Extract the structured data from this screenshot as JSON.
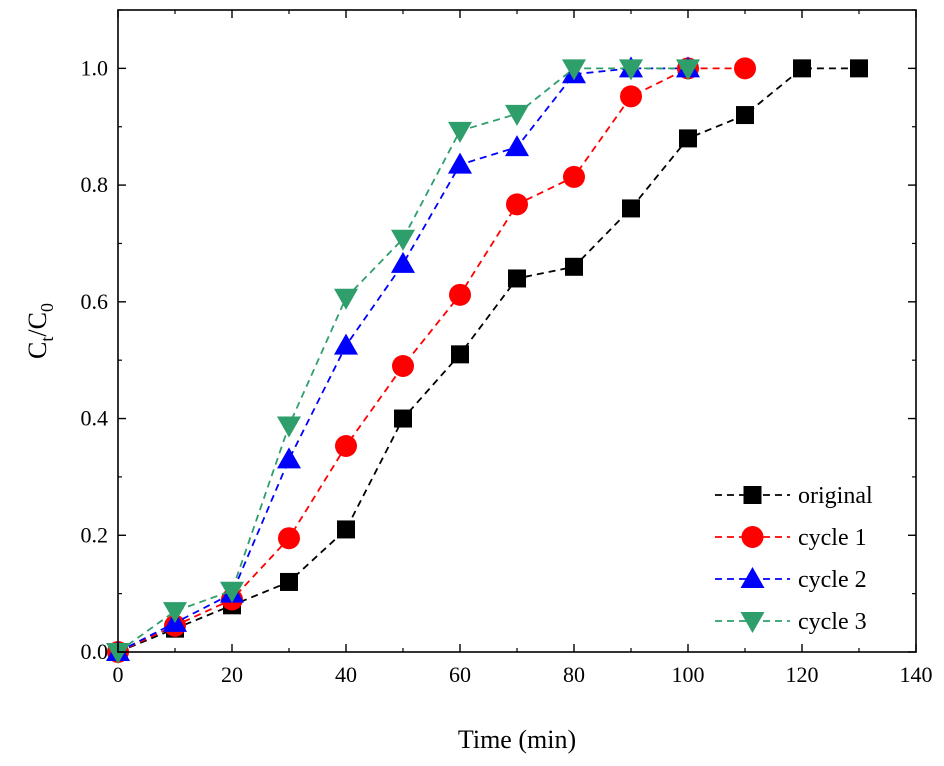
{
  "chart_data": {
    "type": "line",
    "title": "",
    "xlabel": "Time (min)",
    "ylabel": {
      "main": "C",
      "sub1": "t",
      "sep": "/C",
      "sub2": "0"
    },
    "xlim": [
      0,
      140
    ],
    "ylim": [
      0,
      1.1
    ],
    "xticks": [
      0,
      20,
      40,
      60,
      80,
      100,
      120,
      140
    ],
    "xtick_labels": [
      "0",
      "20",
      "40",
      "60",
      "80",
      "100",
      "120",
      "140"
    ],
    "yticks": [
      0,
      0.2,
      0.4,
      0.6,
      0.8,
      1.0
    ],
    "ytick_labels": [
      "0.0",
      "0.2",
      "0.4",
      "0.6",
      "0.8",
      "1.0"
    ],
    "grid": false,
    "legend_position": "bottom-right",
    "series": [
      {
        "name": "original",
        "color": "#000000",
        "marker": "square",
        "x": [
          0,
          10,
          20,
          30,
          40,
          50,
          60,
          70,
          80,
          90,
          100,
          110,
          120,
          130
        ],
        "y": [
          0.0,
          0.04,
          0.08,
          0.12,
          0.21,
          0.4,
          0.51,
          0.64,
          0.66,
          0.76,
          0.88,
          0.92,
          1.0,
          1.0
        ]
      },
      {
        "name": "cycle 1",
        "color": "#ff0000",
        "marker": "circle",
        "x": [
          0,
          10,
          20,
          30,
          40,
          50,
          60,
          70,
          80,
          90,
          100,
          110
        ],
        "y": [
          0.0,
          0.045,
          0.09,
          0.195,
          0.353,
          0.49,
          0.612,
          0.767,
          0.814,
          0.952,
          1.0,
          1.0
        ]
      },
      {
        "name": "cycle 2",
        "color": "#0000ff",
        "marker": "triangle-up",
        "x": [
          0,
          10,
          20,
          30,
          40,
          50,
          60,
          70,
          80,
          90,
          100
        ],
        "y": [
          0.0,
          0.05,
          0.1,
          0.33,
          0.525,
          0.665,
          0.835,
          0.865,
          0.99,
          1.0,
          1.0
        ]
      },
      {
        "name": "cycle 3",
        "color": "#2e9e6b",
        "marker": "triangle-down",
        "x": [
          0,
          10,
          20,
          30,
          40,
          50,
          60,
          70,
          80,
          90,
          100
        ],
        "y": [
          0.0,
          0.07,
          0.105,
          0.388,
          0.607,
          0.708,
          0.893,
          0.922,
          1.0,
          1.0,
          1.0
        ]
      }
    ]
  }
}
